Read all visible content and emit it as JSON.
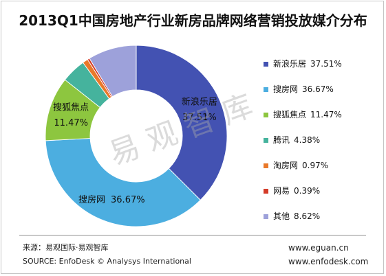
{
  "watermark": "易观智库",
  "chart_data": {
    "type": "pie",
    "donut": true,
    "title": "2013Q1中国房地产行业新房品牌网络营销投放媒介分布",
    "unit": "%",
    "legend": "right",
    "slices": [
      {
        "name": "新浪乐居",
        "value": 37.51,
        "color": "#4352B2",
        "data_label": true
      },
      {
        "name": "搜房网",
        "value": 36.67,
        "color": "#4CAEE0",
        "data_label": true
      },
      {
        "name": "搜狐焦点",
        "value": 11.47,
        "color": "#8DC63F",
        "data_label": true
      },
      {
        "name": "腾讯",
        "value": 4.38,
        "color": "#45B39D",
        "data_label": false
      },
      {
        "name": "淘房网",
        "value": 0.97,
        "color": "#E9792A",
        "data_label": false
      },
      {
        "name": "网易",
        "value": 0.39,
        "color": "#D43B28",
        "data_label": false
      },
      {
        "name": "其他",
        "value": 8.62,
        "color": "#9DA1DA",
        "data_label": false
      }
    ]
  },
  "footer": {
    "source_cn": "来源：易观国际·易观智库",
    "source_en": "SOURCE: EnfoDesk © Analysys International",
    "website_1": "www.eguan.cn",
    "website_2": "www.enfodesk.com"
  }
}
